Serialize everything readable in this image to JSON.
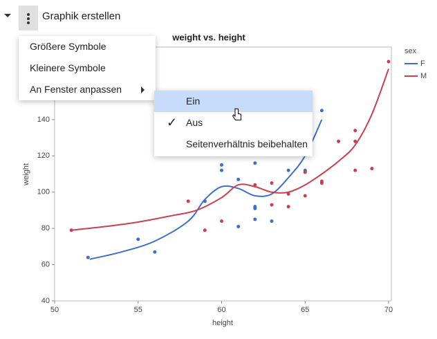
{
  "toolbar": {
    "title": "Graphik erstellen"
  },
  "menu": {
    "items": [
      "Größere Symbole",
      "Kleinere Symbole",
      "An Fenster anpassen"
    ]
  },
  "submenu": {
    "items": [
      "Ein",
      "Aus",
      "Seitenverhältnis beibehalten"
    ]
  },
  "chart_data": {
    "type": "scatter",
    "title": "weight vs. height",
    "x_label": "height",
    "y_label": "weight",
    "legend_title": "sex",
    "xlim": [
      50,
      70
    ],
    "ylim": [
      40,
      180
    ],
    "xticks": [
      50,
      55,
      60,
      65,
      70
    ],
    "yticks": [
      40,
      60,
      80,
      100,
      120,
      140
    ],
    "series": [
      {
        "name": "F",
        "color": "#3a6fd0",
        "x": [
          52,
          55,
          56,
          59,
          60,
          60,
          61,
          61,
          62,
          62,
          62,
          62,
          63,
          64,
          65,
          65,
          66
        ],
        "values": [
          64,
          74,
          67,
          95,
          115,
          112,
          107,
          81,
          116,
          92,
          91,
          85,
          84,
          112,
          112,
          111,
          145
        ],
        "curve_x": [
          52.1,
          54,
          56,
          58,
          59,
          60,
          61,
          62,
          63,
          64,
          65,
          66
        ],
        "curve_y": [
          63,
          67,
          73,
          84,
          96,
          103,
          102,
          98,
          99,
          108,
          120,
          140
        ]
      },
      {
        "name": "M",
        "color": "#cc3e4c",
        "x": [
          51,
          58,
          59,
          60,
          62,
          63,
          63,
          64,
          64,
          65,
          65,
          66,
          66,
          67,
          68,
          68,
          68,
          69,
          70
        ],
        "values": [
          79,
          95,
          79,
          84,
          104,
          105,
          93,
          99,
          92,
          111,
          98,
          106,
          105,
          128,
          134,
          128,
          112,
          113,
          172
        ],
        "curve_x": [
          51,
          53,
          55,
          57,
          58.5,
          60,
          61,
          62,
          63,
          64,
          65,
          66,
          67,
          68,
          69,
          70
        ],
        "curve_y": [
          79,
          81,
          83.5,
          87,
          90,
          97,
          104,
          103,
          100,
          100,
          104,
          110,
          117,
          126,
          143,
          168
        ]
      }
    ]
  }
}
